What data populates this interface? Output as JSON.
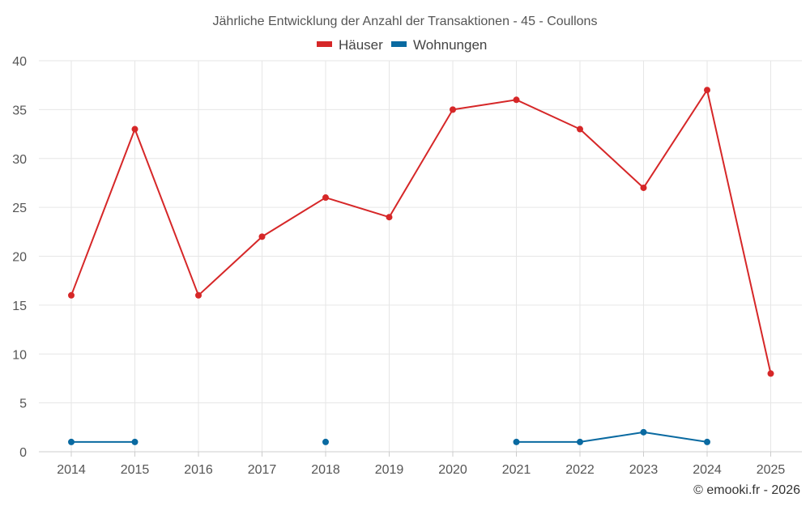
{
  "chart_data": {
    "type": "line",
    "title": "Jährliche Entwicklung der Anzahl der Transaktionen - 45 - Coullons",
    "categories": [
      "2014",
      "2015",
      "2016",
      "2017",
      "2018",
      "2019",
      "2020",
      "2021",
      "2022",
      "2023",
      "2024",
      "2025"
    ],
    "series": [
      {
        "name": "Häuser",
        "color": "#d62728",
        "values": [
          16,
          33,
          16,
          22,
          26,
          24,
          35,
          36,
          33,
          27,
          37,
          8
        ]
      },
      {
        "name": "Wohnungen",
        "color": "#0a6aa1",
        "values": [
          1,
          1,
          null,
          null,
          1,
          null,
          null,
          1,
          1,
          2,
          1,
          null
        ]
      }
    ],
    "ylim": [
      0,
      40
    ],
    "yticks": [
      "0",
      "5",
      "10",
      "15",
      "20",
      "25",
      "30",
      "35",
      "40"
    ],
    "xlabel": "",
    "ylabel": "",
    "grid": true,
    "legend_position": "top-center"
  },
  "credit": "© emooki.fr - 2026"
}
